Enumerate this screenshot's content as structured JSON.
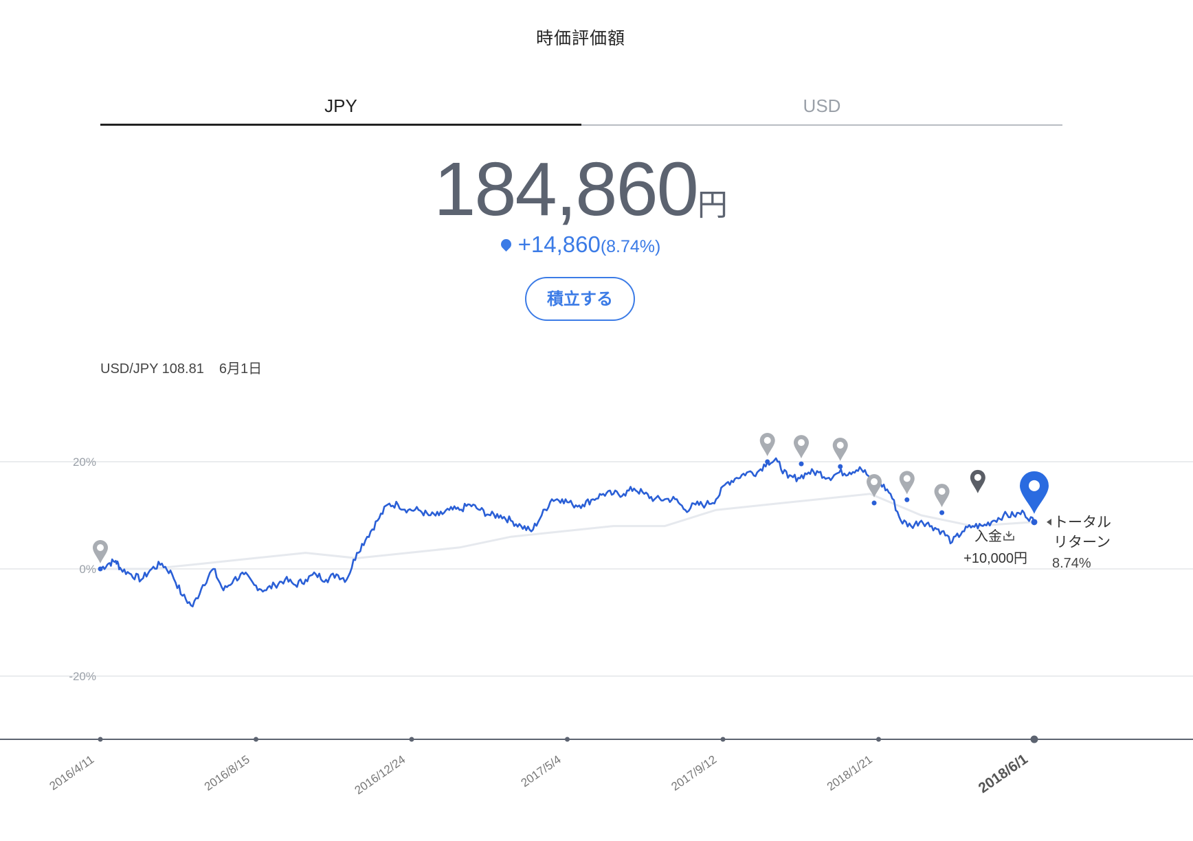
{
  "page": {
    "title": "時価評価額"
  },
  "tabs": [
    {
      "label": "JPY",
      "active": true
    },
    {
      "label": "USD",
      "active": false
    }
  ],
  "valuation": {
    "amount": "184,860",
    "unit": "円",
    "change": "+14,860",
    "change_pct": "(8.74%)"
  },
  "actions": {
    "invest_button": "積立する"
  },
  "fx": {
    "pair_rate": "USD/JPY 108.81",
    "date": "6月1日"
  },
  "colors": {
    "accent": "#3b7be6",
    "line_primary": "#2a5fd6",
    "line_secondary": "#e6e9ee",
    "axis": "#5c6370",
    "marker_gray": "#a9adb3",
    "marker_dark": "#5a5e66"
  },
  "chart_data": {
    "type": "line",
    "y_ticks": [
      "20%",
      "0%",
      "-20%"
    ],
    "y_tick_values": [
      20,
      0,
      -20
    ],
    "ylim": [
      -32,
      30
    ],
    "x_tick_labels": [
      "2016/4/11",
      "2016/8/15",
      "2016/12/24",
      "2017/5/4",
      "2017/9/12",
      "2018/1/21",
      "2018/6/1"
    ],
    "x_tick_bold": "2018/6/1",
    "series": [
      {
        "key": "portfolio",
        "color": "#2a5fd6",
        "points": [
          [
            0,
            0
          ],
          [
            0.8,
            1
          ],
          [
            1.5,
            1.5
          ],
          [
            2,
            0
          ],
          [
            3,
            -1
          ],
          [
            4,
            -2
          ],
          [
            5,
            0
          ],
          [
            6,
            1
          ],
          [
            7,
            -1
          ],
          [
            8,
            -5
          ],
          [
            9,
            -7
          ],
          [
            10,
            -3
          ],
          [
            11,
            0
          ],
          [
            12,
            -4
          ],
          [
            13,
            -2
          ],
          [
            14,
            -1
          ],
          [
            15,
            -3
          ],
          [
            16,
            -4
          ],
          [
            17,
            -3
          ],
          [
            18,
            -2
          ],
          [
            19,
            -3
          ],
          [
            20,
            -2
          ],
          [
            21,
            -1
          ],
          [
            22,
            -2
          ],
          [
            23,
            -1
          ],
          [
            24,
            -2
          ],
          [
            25,
            3
          ],
          [
            26,
            6
          ],
          [
            27,
            9
          ],
          [
            28,
            12
          ],
          [
            29,
            12
          ],
          [
            30,
            11
          ],
          [
            31,
            11
          ],
          [
            32,
            10
          ],
          [
            33,
            10
          ],
          [
            34,
            11
          ],
          [
            35,
            11
          ],
          [
            36,
            12
          ],
          [
            37,
            11
          ],
          [
            38,
            10
          ],
          [
            39,
            10
          ],
          [
            40,
            9
          ],
          [
            41,
            8
          ],
          [
            42,
            7
          ],
          [
            43,
            10
          ],
          [
            44,
            13
          ],
          [
            45,
            13
          ],
          [
            46,
            12
          ],
          [
            47,
            12
          ],
          [
            48,
            13
          ],
          [
            49,
            14
          ],
          [
            50,
            14
          ],
          [
            51,
            14
          ],
          [
            52,
            15
          ],
          [
            53,
            14
          ],
          [
            54,
            13
          ],
          [
            55,
            13
          ],
          [
            56,
            13
          ],
          [
            57,
            11
          ],
          [
            58,
            12
          ],
          [
            59,
            12
          ],
          [
            60,
            13
          ],
          [
            61,
            16
          ],
          [
            62,
            17
          ],
          [
            63,
            18
          ],
          [
            64,
            18
          ],
          [
            65,
            20
          ],
          [
            66,
            20
          ],
          [
            67,
            17
          ],
          [
            68,
            17
          ],
          [
            69,
            18
          ],
          [
            70,
            18
          ],
          [
            71,
            17
          ],
          [
            72,
            18
          ],
          [
            73,
            18
          ],
          [
            74,
            19
          ],
          [
            75,
            17
          ],
          [
            76,
            16
          ],
          [
            77,
            14
          ],
          [
            78,
            9
          ],
          [
            79,
            8
          ],
          [
            80,
            9
          ],
          [
            81,
            8
          ],
          [
            82,
            7
          ],
          [
            83,
            5
          ],
          [
            84,
            7
          ],
          [
            85,
            8
          ],
          [
            86,
            8
          ],
          [
            87,
            9
          ],
          [
            88,
            10
          ],
          [
            89,
            10
          ],
          [
            90,
            10.5
          ],
          [
            91,
            8.74
          ]
        ],
        "comment": "x = index of equally spaced observations from 2016/4/11 to 2018/6/1; y = return %"
      },
      {
        "key": "benchmark",
        "color": "#e6e9ee",
        "points": [
          [
            0,
            0
          ],
          [
            5,
            0
          ],
          [
            10,
            1
          ],
          [
            15,
            2
          ],
          [
            20,
            3
          ],
          [
            25,
            2
          ],
          [
            30,
            3
          ],
          [
            35,
            4
          ],
          [
            40,
            6
          ],
          [
            45,
            7
          ],
          [
            50,
            8
          ],
          [
            55,
            8
          ],
          [
            60,
            11
          ],
          [
            65,
            12
          ],
          [
            70,
            13
          ],
          [
            75,
            14
          ],
          [
            80,
            10
          ],
          [
            85,
            8
          ],
          [
            91,
            8.74
          ]
        ]
      }
    ],
    "pin_markers": [
      {
        "x": 0,
        "y": 0,
        "style": "gray"
      },
      {
        "x": 65,
        "y": 20,
        "style": "gray"
      },
      {
        "x": 68.3,
        "y": 19.6,
        "style": "gray"
      },
      {
        "x": 72.1,
        "y": 19.1,
        "style": "gray"
      },
      {
        "x": 75.4,
        "y": 12.3,
        "style": "gray"
      },
      {
        "x": 78.6,
        "y": 12.9,
        "style": "gray"
      },
      {
        "x": 82,
        "y": 10.5,
        "style": "gray"
      },
      {
        "x": 85.5,
        "y": 13.1,
        "style": "dark"
      },
      {
        "x": 91,
        "y": 8.74,
        "style": "blue"
      }
    ],
    "annotations": {
      "deposit_label": "入金",
      "deposit_amount": "+10,000円",
      "total_return_line1": "トータル",
      "total_return_line2": "リターン",
      "total_return_value": "8.74%"
    }
  }
}
